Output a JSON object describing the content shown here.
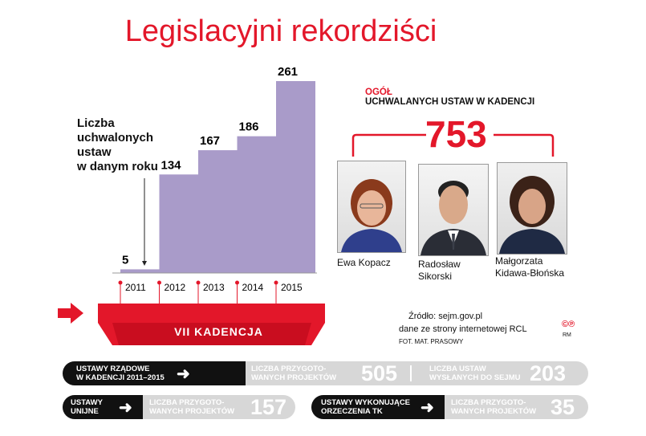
{
  "title": "Legislacyjni rekordziści",
  "chart_data": {
    "type": "bar",
    "categories": [
      "2011",
      "2012",
      "2013",
      "2014",
      "2015"
    ],
    "values": [
      5,
      134,
      167,
      186,
      261
    ],
    "ylabel": "Liczba uchwalonych ustaw w danym roku",
    "bar_color": "#a99bc9",
    "ylim": [
      0,
      261
    ]
  },
  "annotation": {
    "ylabel_lines": [
      "Liczba",
      "uchwalonych",
      "ustaw",
      "w danym roku"
    ]
  },
  "total": {
    "head_red": "OGÓŁ",
    "head": "UCHWALANYCH USTAW  W KADENCJI",
    "value": "753"
  },
  "people": [
    {
      "name": "Ewa Kopacz"
    },
    {
      "name_line1": "Radosław",
      "name_line2": "Sikorski"
    },
    {
      "name_line1": "Małgorzata",
      "name_line2": "Kidawa-Błońska"
    }
  ],
  "term": "VII  KADENCJA",
  "source": {
    "line1": "Źródło: sejm.gov.pl",
    "line2": "dane ze strony internetowej RCL",
    "photo_credit": "FOT. MAT. PRASOWY",
    "copyright": "©℗",
    "initials": "RM"
  },
  "stats": {
    "rzadowe_l1": "USTAWY RZĄDOWE",
    "rzadowe_l2": "W KADENCJI 2011–2015",
    "projekty_l1": "LICZBA PRZYGOTO-",
    "projekty_l2": "WANYCH PROJEKTÓW",
    "projekty_value": "505",
    "wyslane_l1": "LICZBA USTAW",
    "wyslane_l2": "WYSŁANYCH DO SEJMU",
    "wyslane_value": "203",
    "unijne_l1": "USTAWY",
    "unijne_l2": "UNIJNE",
    "unijne_proj_l1": "LICZBA PRZYGOTO-",
    "unijne_proj_l2": "WANYCH PROJEKTÓW",
    "unijne_value": "157",
    "tk_l1": "USTAWY WYKONUJĄCE",
    "tk_l2": "ORZECZENIA TK",
    "tk_proj_l1": "LICZBA PRZYGOTO-",
    "tk_proj_l2": "WANYCH PROJEKTÓW",
    "tk_value": "35"
  },
  "colors": {
    "accent": "#e3172a",
    "bar": "#a99bc9",
    "dark": "#111111",
    "grey": "#d7d7d7"
  }
}
